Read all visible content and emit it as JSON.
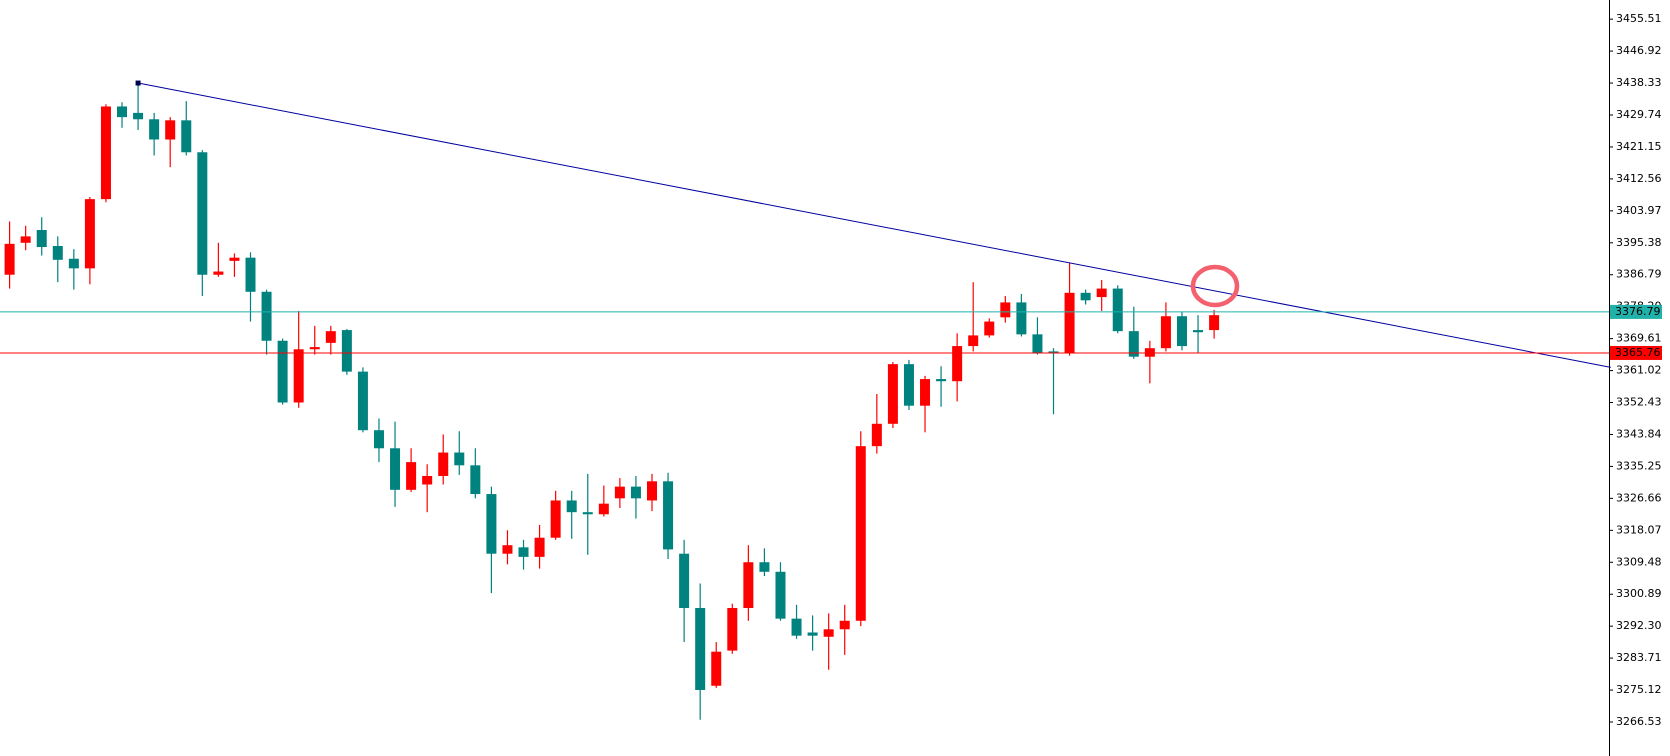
{
  "chart_data": {
    "type": "candlestick",
    "up_color": "#ff0000",
    "down_color": "#00827f",
    "open": [
      3386.79,
      3395.38,
      3398.82,
      3394.52,
      3391.09,
      3388.51,
      3407.12,
      3432.03,
      3430.31,
      3428.59,
      3423.15,
      3428.31,
      3419.72,
      3386.79,
      3390.52,
      3391.38,
      3382.21,
      3369.04,
      3352.44,
      3366.75,
      3368.47,
      3371.91,
      3360.74,
      3344.99,
      3340.13,
      3328.96,
      3330.39,
      3332.68,
      3338.98,
      3335.55,
      3327.82,
      3311.78,
      3313.5,
      3310.93,
      3316.08,
      3326.1,
      3322.95,
      3322.38,
      3326.67,
      3329.82,
      3326.1,
      3331.25,
      3311.78,
      3297.18,
      3276.28,
      3285.73,
      3297.18,
      3309.49,
      3306.92,
      3294.32,
      3290.6,
      3289.45,
      3291.46,
      3293.75,
      3340.7,
      3346.71,
      3362.75,
      3351.58,
      3358.74,
      3358.16,
      3367.61,
      3370.48,
      3375.34,
      3379.35,
      3370.76,
      3366.18,
      3365.61,
      3381.93,
      3380.78,
      3383.07,
      3371.62,
      3364.75,
      3367.04,
      3375.63,
      3371.91,
      3371.91
    ],
    "high": [
      3401.11,
      3399.96,
      3402.25,
      3397.1,
      3393.67,
      3407.69,
      3432.6,
      3433.18,
      3438.33,
      3430.31,
      3429.17,
      3433.46,
      3420.29,
      3395.38,
      3392.52,
      3392.81,
      3382.79,
      3369.62,
      3377.06,
      3373.05,
      3373.05,
      3372.19,
      3361.89,
      3348.14,
      3347.29,
      3340.13,
      3335.83,
      3343.85,
      3344.71,
      3340.13,
      3329.82,
      3318.08,
      3315.51,
      3319.51,
      3328.68,
      3328.68,
      3333.26,
      3330.11,
      3332.11,
      3332.68,
      3333.26,
      3333.54,
      3315.51,
      3303.77,
      3288.02,
      3298.33,
      3314.07,
      3313.22,
      3309.49,
      3298.04,
      3295.18,
      3295.75,
      3298.04,
      3344.71,
      3354.73,
      3363.32,
      3363.89,
      3359.6,
      3362.17,
      3371.05,
      3384.79,
      3375.06,
      3381.07,
      3381.64,
      3375.34,
      3367.04,
      3389.94,
      3382.79,
      3385.36,
      3383.93,
      3378.21,
      3369.04,
      3379.35,
      3376.77,
      3375.92,
      3377.35
    ],
    "low": [
      3383.07,
      3393.38,
      3391.95,
      3384.79,
      3382.79,
      3384.22,
      3406.26,
      3426.3,
      3425.73,
      3418.86,
      3415.71,
      3418.86,
      3381.07,
      3386.22,
      3386.22,
      3374.2,
      3365.32,
      3351.87,
      3351.01,
      3365.32,
      3365.32,
      3359.88,
      3344.42,
      3336.41,
      3324.38,
      3328.39,
      3322.95,
      3330.39,
      3332.97,
      3326.67,
      3301.19,
      3308.92,
      3307.49,
      3307.78,
      3315.51,
      3315.79,
      3311.5,
      3321.8,
      3324.09,
      3321.23,
      3323.24,
      3310.35,
      3288.02,
      3267.12,
      3275.71,
      3284.87,
      3293.75,
      3305.77,
      3293.75,
      3288.88,
      3285.73,
      3280.58,
      3284.59,
      3292.32,
      3338.7,
      3345.57,
      3350.43,
      3344.42,
      3351.29,
      3352.72,
      3366.18,
      3369.9,
      3373.91,
      3370.19,
      3365.32,
      3349.29,
      3365.04,
      3378.78,
      3377.06,
      3371.05,
      3364.18,
      3357.59,
      3366.18,
      3366.47,
      3365.61,
      3369.62
    ],
    "close": [
      3395.1,
      3397.1,
      3394.24,
      3390.8,
      3388.51,
      3407.12,
      3432.03,
      3429.17,
      3428.59,
      3423.15,
      3428.31,
      3419.72,
      3386.79,
      3387.65,
      3391.38,
      3382.21,
      3369.04,
      3352.44,
      3366.75,
      3367.33,
      3371.62,
      3360.74,
      3344.99,
      3340.13,
      3328.96,
      3336.41,
      3332.68,
      3338.98,
      3335.55,
      3327.82,
      3311.78,
      3314.07,
      3310.93,
      3316.08,
      3326.1,
      3322.95,
      3322.38,
      3325.24,
      3329.82,
      3326.67,
      3331.25,
      3312.93,
      3297.18,
      3275.14,
      3285.44,
      3297.18,
      3309.49,
      3306.92,
      3294.32,
      3289.74,
      3289.74,
      3291.46,
      3293.75,
      3340.7,
      3346.71,
      3362.75,
      3351.58,
      3358.74,
      3358.16,
      3367.61,
      3370.48,
      3374.2,
      3379.35,
      3370.76,
      3365.61,
      3365.61,
      3381.93,
      3379.92,
      3383.07,
      3371.62,
      3364.75,
      3367.04,
      3375.63,
      3367.61,
      3371.33,
      3375.92
    ],
    "ylim": [
      3257.39,
      3460.66
    ],
    "yticks": [
      3455.51,
      3446.92,
      3438.33,
      3429.74,
      3421.15,
      3412.56,
      3403.97,
      3395.38,
      3386.79,
      {
        "value": 3378.2,
        "label": "3378.20"
      },
      3369.61,
      3361.02,
      3352.43,
      3343.84,
      3335.25,
      3326.66,
      3318.07,
      3309.48,
      3300.89,
      {
        "value": 3292.3,
        "label": "3292.30"
      },
      3283.71,
      3275.12,
      3266.53
    ],
    "price_lines": [
      {
        "value": 3376.79,
        "color": "#20b2aa"
      },
      {
        "value": 3365.76,
        "color": "#ff0000"
      }
    ],
    "trendline": {
      "color": "#0000a0",
      "points": [
        {
          "index": 8,
          "price": 3438.33
        },
        {
          "index": 99.7,
          "price": 3361.89
        }
      ]
    }
  }
}
